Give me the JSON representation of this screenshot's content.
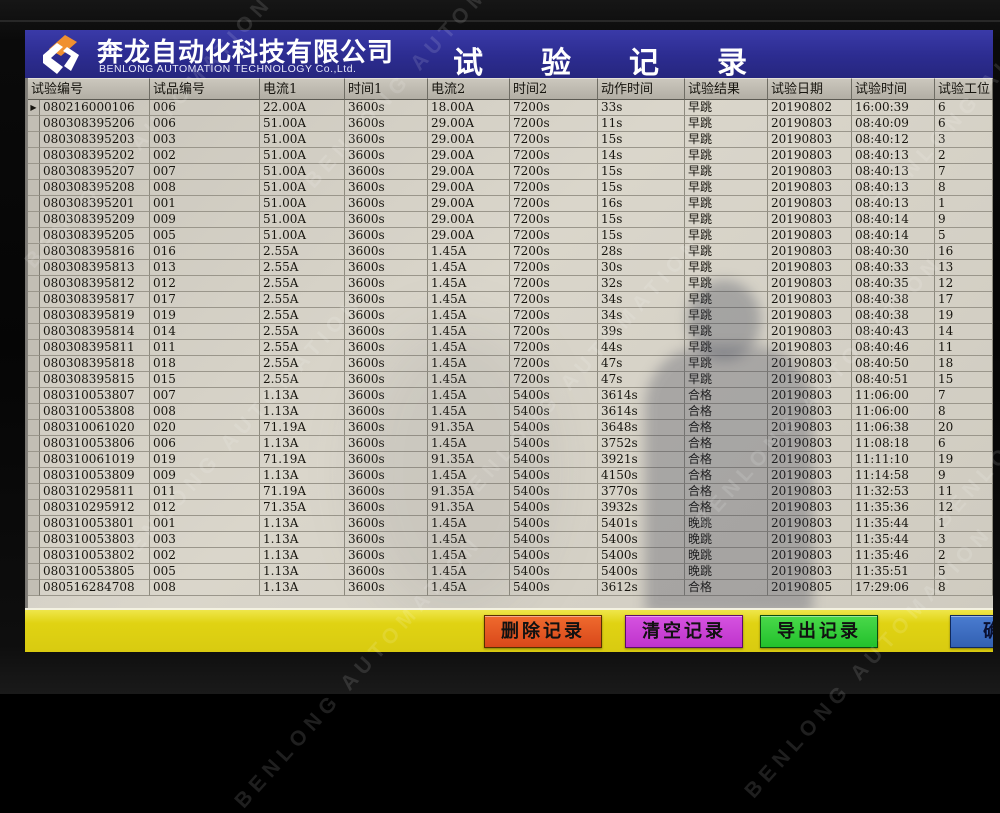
{
  "watermark": {
    "text": "BENLONG AUTOMATION"
  },
  "header": {
    "company_name": "奔龙自动化科技有限公司",
    "company_subtitle": "BENLONG AUTOMATION TECHNOLOGY Co.,Ltd.",
    "title": "试验记录"
  },
  "table": {
    "selector_symbol": "▶",
    "selected_row_index": 0,
    "columns": [
      "试验编号",
      "试品编号",
      "电流1",
      "时间1",
      "电流2",
      "时间2",
      "动作时间",
      "试验结果",
      "试验日期",
      "试验时间",
      "试验工位"
    ],
    "rows": [
      [
        "080216000106",
        "006",
        "22.00A",
        "3600s",
        "18.00A",
        "7200s",
        "33s",
        "早跳",
        "20190802",
        "16:00:39",
        "6"
      ],
      [
        "080308395206",
        "006",
        "51.00A",
        "3600s",
        "29.00A",
        "7200s",
        "11s",
        "早跳",
        "20190803",
        "08:40:09",
        "6"
      ],
      [
        "080308395203",
        "003",
        "51.00A",
        "3600s",
        "29.00A",
        "7200s",
        "15s",
        "早跳",
        "20190803",
        "08:40:12",
        "3"
      ],
      [
        "080308395202",
        "002",
        "51.00A",
        "3600s",
        "29.00A",
        "7200s",
        "14s",
        "早跳",
        "20190803",
        "08:40:13",
        "2"
      ],
      [
        "080308395207",
        "007",
        "51.00A",
        "3600s",
        "29.00A",
        "7200s",
        "15s",
        "早跳",
        "20190803",
        "08:40:13",
        "7"
      ],
      [
        "080308395208",
        "008",
        "51.00A",
        "3600s",
        "29.00A",
        "7200s",
        "15s",
        "早跳",
        "20190803",
        "08:40:13",
        "8"
      ],
      [
        "080308395201",
        "001",
        "51.00A",
        "3600s",
        "29.00A",
        "7200s",
        "16s",
        "早跳",
        "20190803",
        "08:40:13",
        "1"
      ],
      [
        "080308395209",
        "009",
        "51.00A",
        "3600s",
        "29.00A",
        "7200s",
        "15s",
        "早跳",
        "20190803",
        "08:40:14",
        "9"
      ],
      [
        "080308395205",
        "005",
        "51.00A",
        "3600s",
        "29.00A",
        "7200s",
        "15s",
        "早跳",
        "20190803",
        "08:40:14",
        "5"
      ],
      [
        "080308395816",
        "016",
        "2.55A",
        "3600s",
        "1.45A",
        "7200s",
        "28s",
        "早跳",
        "20190803",
        "08:40:30",
        "16"
      ],
      [
        "080308395813",
        "013",
        "2.55A",
        "3600s",
        "1.45A",
        "7200s",
        "30s",
        "早跳",
        "20190803",
        "08:40:33",
        "13"
      ],
      [
        "080308395812",
        "012",
        "2.55A",
        "3600s",
        "1.45A",
        "7200s",
        "32s",
        "早跳",
        "20190803",
        "08:40:35",
        "12"
      ],
      [
        "080308395817",
        "017",
        "2.55A",
        "3600s",
        "1.45A",
        "7200s",
        "34s",
        "早跳",
        "20190803",
        "08:40:38",
        "17"
      ],
      [
        "080308395819",
        "019",
        "2.55A",
        "3600s",
        "1.45A",
        "7200s",
        "34s",
        "早跳",
        "20190803",
        "08:40:38",
        "19"
      ],
      [
        "080308395814",
        "014",
        "2.55A",
        "3600s",
        "1.45A",
        "7200s",
        "39s",
        "早跳",
        "20190803",
        "08:40:43",
        "14"
      ],
      [
        "080308395811",
        "011",
        "2.55A",
        "3600s",
        "1.45A",
        "7200s",
        "44s",
        "早跳",
        "20190803",
        "08:40:46",
        "11"
      ],
      [
        "080308395818",
        "018",
        "2.55A",
        "3600s",
        "1.45A",
        "7200s",
        "47s",
        "早跳",
        "20190803",
        "08:40:50",
        "18"
      ],
      [
        "080308395815",
        "015",
        "2.55A",
        "3600s",
        "1.45A",
        "7200s",
        "47s",
        "早跳",
        "20190803",
        "08:40:51",
        "15"
      ],
      [
        "080310053807",
        "007",
        "1.13A",
        "3600s",
        "1.45A",
        "5400s",
        "3614s",
        "合格",
        "20190803",
        "11:06:00",
        "7"
      ],
      [
        "080310053808",
        "008",
        "1.13A",
        "3600s",
        "1.45A",
        "5400s",
        "3614s",
        "合格",
        "20190803",
        "11:06:00",
        "8"
      ],
      [
        "080310061020",
        "020",
        "71.19A",
        "3600s",
        "91.35A",
        "5400s",
        "3648s",
        "合格",
        "20190803",
        "11:06:38",
        "20"
      ],
      [
        "080310053806",
        "006",
        "1.13A",
        "3600s",
        "1.45A",
        "5400s",
        "3752s",
        "合格",
        "20190803",
        "11:08:18",
        "6"
      ],
      [
        "080310061019",
        "019",
        "71.19A",
        "3600s",
        "91.35A",
        "5400s",
        "3921s",
        "合格",
        "20190803",
        "11:11:10",
        "19"
      ],
      [
        "080310053809",
        "009",
        "1.13A",
        "3600s",
        "1.45A",
        "5400s",
        "4150s",
        "合格",
        "20190803",
        "11:14:58",
        "9"
      ],
      [
        "080310295811",
        "011",
        "71.19A",
        "3600s",
        "91.35A",
        "5400s",
        "3770s",
        "合格",
        "20190803",
        "11:32:53",
        "11"
      ],
      [
        "080310295912",
        "012",
        "71.35A",
        "3600s",
        "91.35A",
        "5400s",
        "3932s",
        "合格",
        "20190803",
        "11:35:36",
        "12"
      ],
      [
        "080310053801",
        "001",
        "1.13A",
        "3600s",
        "1.45A",
        "5400s",
        "5401s",
        "晚跳",
        "20190803",
        "11:35:44",
        "1"
      ],
      [
        "080310053803",
        "003",
        "1.13A",
        "3600s",
        "1.45A",
        "5400s",
        "5400s",
        "晚跳",
        "20190803",
        "11:35:44",
        "3"
      ],
      [
        "080310053802",
        "002",
        "1.13A",
        "3600s",
        "1.45A",
        "5400s",
        "5400s",
        "晚跳",
        "20190803",
        "11:35:46",
        "2"
      ],
      [
        "080310053805",
        "005",
        "1.13A",
        "3600s",
        "1.45A",
        "5400s",
        "5400s",
        "晚跳",
        "20190803",
        "11:35:51",
        "5"
      ],
      [
        "080516284708",
        "008",
        "1.13A",
        "3600s",
        "1.45A",
        "5400s",
        "3612s",
        "合格",
        "20190805",
        "17:29:06",
        "8"
      ]
    ]
  },
  "footer": {
    "delete_label": "删除记录",
    "clear_label": "清空记录",
    "export_label": "导出记录",
    "confirm_label": "确",
    "bar_color": "#e0d313",
    "delete_color": "#dd4f1e",
    "clear_color": "#cb3fd6",
    "export_color": "#2ec433",
    "confirm_color": "#3a6cc0"
  },
  "colors": {
    "header_bar": "#2c2c90",
    "table_bg": "#d3cfc5",
    "logo_accent": "#f09030"
  }
}
